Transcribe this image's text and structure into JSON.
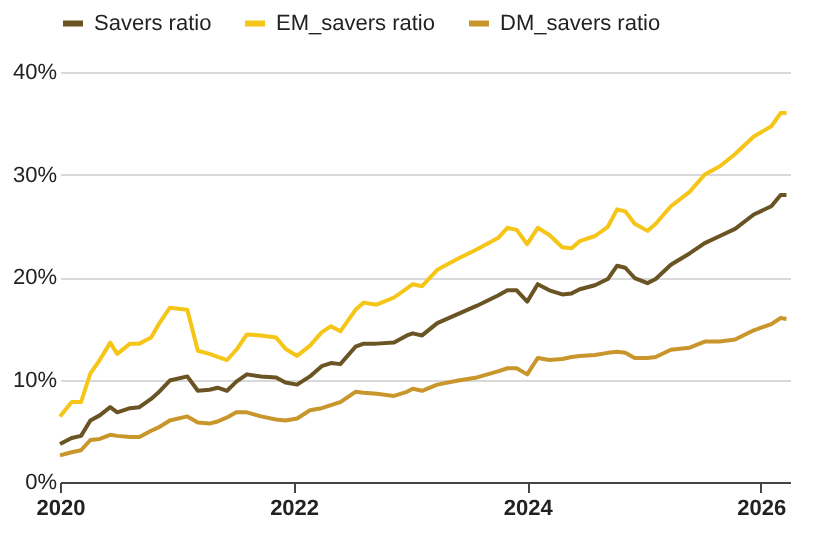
{
  "chart_data": {
    "type": "line",
    "x": [
      2020.0,
      2020.1,
      2020.18,
      2020.26,
      2020.34,
      2020.43,
      2020.49,
      2020.6,
      2020.68,
      2020.78,
      2020.84,
      2020.94,
      2021.09,
      2021.18,
      2021.28,
      2021.35,
      2021.43,
      2021.51,
      2021.6,
      2021.72,
      2021.85,
      2021.93,
      2022.03,
      2022.14,
      2022.24,
      2022.32,
      2022.4,
      2022.53,
      2022.6,
      2022.71,
      2022.86,
      2022.97,
      2023.02,
      2023.1,
      2023.23,
      2023.41,
      2023.57,
      2023.75,
      2023.83,
      2023.91,
      2024.0,
      2024.09,
      2024.19,
      2024.3,
      2024.38,
      2024.45,
      2024.58,
      2024.69,
      2024.77,
      2024.84,
      2024.92,
      2025.03,
      2025.1,
      2025.23,
      2025.39,
      2025.52,
      2025.65,
      2025.78,
      2025.94,
      2026.09,
      2026.17,
      2026.22
    ],
    "series": [
      {
        "name": "Savers ratio",
        "color": "#6b5424",
        "values": [
          3.7,
          4.3,
          4.5,
          6.0,
          6.5,
          7.3,
          6.8,
          7.2,
          7.3,
          8.1,
          8.7,
          9.9,
          10.3,
          8.9,
          9.0,
          9.2,
          8.9,
          9.8,
          10.5,
          10.3,
          10.2,
          9.7,
          9.5,
          10.3,
          11.3,
          11.6,
          11.5,
          13.2,
          13.5,
          13.5,
          13.6,
          14.3,
          14.5,
          14.3,
          15.5,
          16.4,
          17.2,
          18.2,
          18.7,
          18.7,
          17.6,
          19.3,
          18.7,
          18.3,
          18.4,
          18.8,
          19.2,
          19.8,
          21.1,
          20.9,
          19.9,
          19.4,
          19.8,
          21.2,
          22.3,
          23.3,
          24.0,
          24.7,
          26.1,
          26.9,
          28.0,
          28.0
        ]
      },
      {
        "name": "EM_savers ratio",
        "color": "#f5c518",
        "values": [
          6.4,
          7.8,
          7.8,
          10.6,
          11.9,
          13.6,
          12.5,
          13.5,
          13.5,
          14.1,
          15.3,
          17.0,
          16.8,
          12.8,
          12.5,
          12.2,
          11.9,
          12.9,
          14.4,
          14.3,
          14.1,
          13.0,
          12.3,
          13.3,
          14.6,
          15.2,
          14.7,
          16.8,
          17.5,
          17.3,
          18.0,
          18.9,
          19.3,
          19.1,
          20.7,
          21.8,
          22.7,
          23.8,
          24.8,
          24.6,
          23.2,
          24.8,
          24.1,
          22.9,
          22.8,
          23.5,
          24.0,
          24.9,
          26.6,
          26.4,
          25.2,
          24.5,
          25.2,
          26.9,
          28.3,
          30.0,
          30.8,
          32.0,
          33.7,
          34.7,
          36.0,
          36.0
        ]
      },
      {
        "name": "DM_savers ratio",
        "color": "#c8962a",
        "values": [
          2.6,
          2.9,
          3.1,
          4.1,
          4.2,
          4.6,
          4.5,
          4.4,
          4.4,
          5.0,
          5.3,
          6.0,
          6.4,
          5.8,
          5.7,
          5.9,
          6.3,
          6.8,
          6.8,
          6.4,
          6.1,
          6.0,
          6.2,
          7.0,
          7.2,
          7.5,
          7.8,
          8.8,
          8.7,
          8.6,
          8.4,
          8.8,
          9.1,
          8.9,
          9.5,
          9.9,
          10.2,
          10.8,
          11.1,
          11.1,
          10.5,
          12.1,
          11.9,
          12.0,
          12.2,
          12.3,
          12.4,
          12.6,
          12.7,
          12.6,
          12.1,
          12.1,
          12.2,
          12.9,
          13.1,
          13.7,
          13.7,
          13.9,
          14.8,
          15.4,
          16.0,
          15.9
        ]
      }
    ],
    "xlim": [
      2020,
      2026.25
    ],
    "xticks": [
      2020,
      2022,
      2024,
      2026
    ],
    "ylim": [
      0,
      40
    ],
    "yticks": [
      {
        "value": 0,
        "label": "0%"
      },
      {
        "value": 10,
        "label": "10%"
      },
      {
        "value": 20,
        "label": "20%"
      },
      {
        "value": 30,
        "label": "30%"
      },
      {
        "value": 40,
        "label": "40%"
      }
    ],
    "grid": "y",
    "legend": "top",
    "marker": "none",
    "line_style": "solid"
  }
}
